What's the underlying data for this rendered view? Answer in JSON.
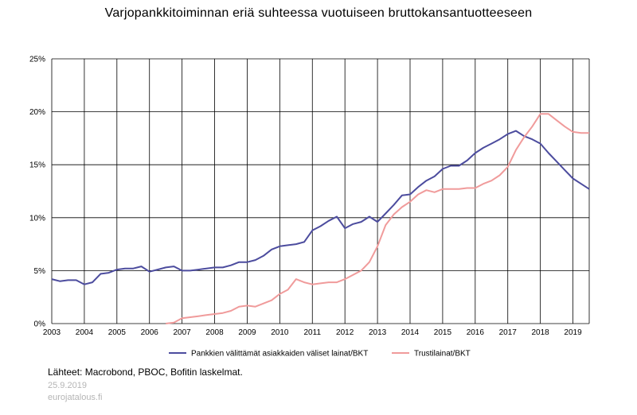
{
  "chart_data": {
    "type": "line",
    "title": "Varjopankkitoiminnan eriä suhteessa vuotuiseen bruttokansantuotteeseen",
    "xlabel": "",
    "ylabel": "",
    "xlim": [
      2003,
      2019.5
    ],
    "ylim": [
      0,
      25
    ],
    "x_ticks": [
      "2003",
      "2004",
      "2005",
      "2006",
      "2007",
      "2008",
      "2009",
      "2010",
      "2011",
      "2012",
      "2013",
      "2014",
      "2015",
      "2016",
      "2017",
      "2018",
      "2019"
    ],
    "y_ticks": [
      {
        "value": 0,
        "label": "0%"
      },
      {
        "value": 5,
        "label": "5%"
      },
      {
        "value": 10,
        "label": "10%"
      },
      {
        "value": 15,
        "label": "15%"
      },
      {
        "value": 20,
        "label": "20%"
      },
      {
        "value": 25,
        "label": "25%"
      }
    ],
    "grid": true,
    "legend_position": "bottom",
    "series": [
      {
        "name": "Pankkien välittämät asiakkaiden väliset lainat/BKT",
        "color": "#4c4c9e",
        "points": [
          [
            2003.0,
            4.2
          ],
          [
            2003.25,
            4.0
          ],
          [
            2003.5,
            4.1
          ],
          [
            2003.75,
            4.1
          ],
          [
            2004.0,
            3.7
          ],
          [
            2004.25,
            3.9
          ],
          [
            2004.5,
            4.7
          ],
          [
            2004.75,
            4.8
          ],
          [
            2005.0,
            5.1
          ],
          [
            2005.25,
            5.2
          ],
          [
            2005.5,
            5.2
          ],
          [
            2005.75,
            5.4
          ],
          [
            2006.0,
            4.9
          ],
          [
            2006.25,
            5.1
          ],
          [
            2006.5,
            5.3
          ],
          [
            2006.75,
            5.4
          ],
          [
            2007.0,
            5.0
          ],
          [
            2007.25,
            5.0
          ],
          [
            2007.5,
            5.1
          ],
          [
            2007.75,
            5.2
          ],
          [
            2008.0,
            5.3
          ],
          [
            2008.25,
            5.3
          ],
          [
            2008.5,
            5.5
          ],
          [
            2008.75,
            5.8
          ],
          [
            2009.0,
            5.8
          ],
          [
            2009.25,
            6.0
          ],
          [
            2009.5,
            6.4
          ],
          [
            2009.75,
            7.0
          ],
          [
            2010.0,
            7.3
          ],
          [
            2010.25,
            7.4
          ],
          [
            2010.5,
            7.5
          ],
          [
            2010.75,
            7.7
          ],
          [
            2011.0,
            8.8
          ],
          [
            2011.25,
            9.2
          ],
          [
            2011.5,
            9.7
          ],
          [
            2011.75,
            10.1
          ],
          [
            2012.0,
            9.0
          ],
          [
            2012.25,
            9.4
          ],
          [
            2012.5,
            9.6
          ],
          [
            2012.75,
            10.1
          ],
          [
            2013.0,
            9.6
          ],
          [
            2013.25,
            10.4
          ],
          [
            2013.5,
            11.2
          ],
          [
            2013.75,
            12.1
          ],
          [
            2014.0,
            12.2
          ],
          [
            2014.25,
            12.9
          ],
          [
            2014.5,
            13.5
          ],
          [
            2014.75,
            13.9
          ],
          [
            2015.0,
            14.6
          ],
          [
            2015.25,
            14.9
          ],
          [
            2015.5,
            14.9
          ],
          [
            2015.75,
            15.4
          ],
          [
            2016.0,
            16.1
          ],
          [
            2016.25,
            16.6
          ],
          [
            2016.5,
            17.0
          ],
          [
            2016.75,
            17.4
          ],
          [
            2017.0,
            17.9
          ],
          [
            2017.25,
            18.2
          ],
          [
            2017.5,
            17.7
          ],
          [
            2017.75,
            17.4
          ],
          [
            2018.0,
            17.0
          ],
          [
            2018.25,
            16.1
          ],
          [
            2018.5,
            15.3
          ],
          [
            2018.75,
            14.5
          ],
          [
            2019.0,
            13.7
          ],
          [
            2019.25,
            13.2
          ],
          [
            2019.5,
            12.7
          ]
        ]
      },
      {
        "name": "Trustilainat/BKT",
        "color": "#f09b9b",
        "points": [
          [
            2006.5,
            0.0
          ],
          [
            2006.75,
            0.1
          ],
          [
            2007.0,
            0.5
          ],
          [
            2007.25,
            0.6
          ],
          [
            2007.5,
            0.7
          ],
          [
            2007.75,
            0.8
          ],
          [
            2008.0,
            0.9
          ],
          [
            2008.25,
            1.0
          ],
          [
            2008.5,
            1.2
          ],
          [
            2008.75,
            1.6
          ],
          [
            2009.0,
            1.7
          ],
          [
            2009.25,
            1.6
          ],
          [
            2009.5,
            1.9
          ],
          [
            2009.75,
            2.2
          ],
          [
            2010.0,
            2.8
          ],
          [
            2010.25,
            3.2
          ],
          [
            2010.5,
            4.2
          ],
          [
            2010.75,
            3.9
          ],
          [
            2011.0,
            3.7
          ],
          [
            2011.25,
            3.8
          ],
          [
            2011.5,
            3.9
          ],
          [
            2011.75,
            3.9
          ],
          [
            2012.0,
            4.2
          ],
          [
            2012.25,
            4.6
          ],
          [
            2012.5,
            5.0
          ],
          [
            2012.75,
            5.8
          ],
          [
            2013.0,
            7.3
          ],
          [
            2013.25,
            9.3
          ],
          [
            2013.5,
            10.3
          ],
          [
            2013.75,
            11.0
          ],
          [
            2014.0,
            11.5
          ],
          [
            2014.25,
            12.2
          ],
          [
            2014.5,
            12.6
          ],
          [
            2014.75,
            12.4
          ],
          [
            2015.0,
            12.7
          ],
          [
            2015.25,
            12.7
          ],
          [
            2015.5,
            12.7
          ],
          [
            2015.75,
            12.8
          ],
          [
            2016.0,
            12.8
          ],
          [
            2016.25,
            13.2
          ],
          [
            2016.5,
            13.5
          ],
          [
            2016.75,
            14.0
          ],
          [
            2017.0,
            14.8
          ],
          [
            2017.25,
            16.4
          ],
          [
            2017.5,
            17.6
          ],
          [
            2017.75,
            18.6
          ],
          [
            2018.0,
            19.8
          ],
          [
            2018.25,
            19.8
          ],
          [
            2018.5,
            19.2
          ],
          [
            2018.75,
            18.6
          ],
          [
            2019.0,
            18.1
          ],
          [
            2019.25,
            18.0
          ],
          [
            2019.5,
            18.0
          ]
        ]
      }
    ]
  },
  "footer": {
    "source": "Lähteet: Macrobond, PBOC, Bofitin laskelmat.",
    "date": "25.9.2019",
    "site": "eurojatalous.fi"
  }
}
